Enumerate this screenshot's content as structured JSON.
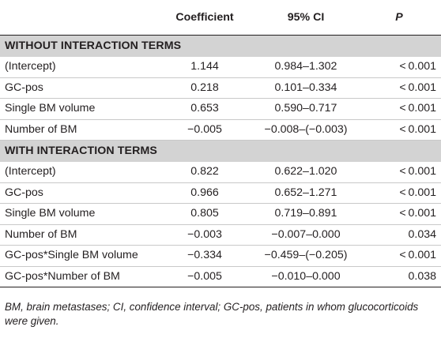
{
  "table": {
    "headers": [
      "",
      "Coefficient",
      "95% CI",
      "P"
    ],
    "sections": [
      {
        "title": "WITHOUT INTERACTION TERMS",
        "rows": [
          {
            "label": "(Intercept)",
            "coef": "1.144",
            "ci": "0.984–1.302",
            "p": "< 0.001"
          },
          {
            "label": "GC-pos",
            "coef": "0.218",
            "ci": "0.101–0.334",
            "p": "< 0.001"
          },
          {
            "label": "Single BM volume",
            "coef": "0.653",
            "ci": "0.590–0.717",
            "p": "< 0.001"
          },
          {
            "label": "Number of BM",
            "coef": "−0.005",
            "ci": "−0.008–(−0.003)",
            "p": "< 0.001"
          }
        ]
      },
      {
        "title": "WITH INTERACTION TERMS",
        "rows": [
          {
            "label": "(Intercept)",
            "coef": "0.822",
            "ci": "0.622–1.020",
            "p": "< 0.001"
          },
          {
            "label": "GC-pos",
            "coef": "0.966",
            "ci": "0.652–1.271",
            "p": "< 0.001"
          },
          {
            "label": "Single BM volume",
            "coef": "0.805",
            "ci": "0.719–0.891",
            "p": "< 0.001"
          },
          {
            "label": "Number of BM",
            "coef": "−0.003",
            "ci": "−0.007–0.000",
            "p": "0.034"
          },
          {
            "label": "GC-pos*Single BM volume",
            "coef": "−0.334",
            "ci": "−0.459–(−0.205)",
            "p": "< 0.001"
          },
          {
            "label": "GC-pos*Number of BM",
            "coef": "−0.005",
            "ci": "−0.010–0.000",
            "p": "0.038"
          }
        ]
      }
    ]
  },
  "footnote": "BM, brain metastases; CI, confidence interval; GC-pos, patients in whom glucocorticoids were given."
}
